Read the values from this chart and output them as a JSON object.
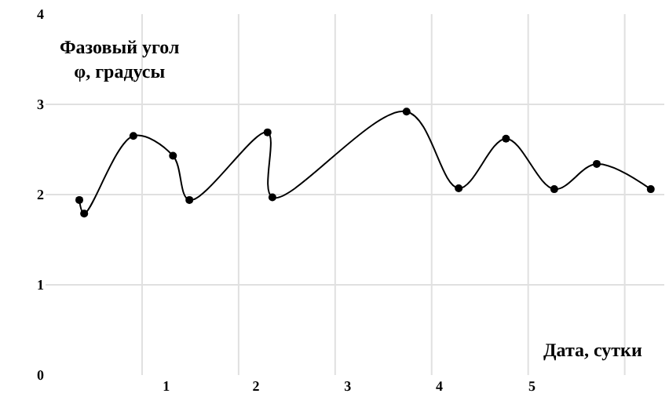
{
  "chart_data": {
    "type": "line",
    "ylabel": "Фазовый угол\nφ, градусы",
    "xlabel": "Дата, сутки",
    "x": [
      0.35,
      0.4,
      0.91,
      1.32,
      1.49,
      2.3,
      2.35,
      3.74,
      4.28,
      4.77,
      5.27,
      5.71,
      6.27
    ],
    "series": [
      {
        "color": "#000000",
        "values": [
          1.94,
          1.79,
          2.65,
          2.43,
          1.94,
          2.69,
          1.97,
          2.92,
          2.07,
          2.62,
          2.06,
          2.34,
          2.06
        ]
      }
    ],
    "xlim": [
      0,
      6.41
    ],
    "xticks": [
      {
        "value": 1,
        "label": null
      },
      {
        "value": 2,
        "label": null
      },
      {
        "value": 3,
        "label": null
      },
      {
        "value": 4,
        "label": null
      },
      {
        "value": 5,
        "label": null
      },
      {
        "value": 6,
        "label": null
      },
      {
        "value": 1.25,
        "label": "1"
      },
      {
        "value": 2.18,
        "label": "2"
      },
      {
        "value": 3.13,
        "label": "3"
      },
      {
        "value": 4.08,
        "label": "4"
      },
      {
        "value": 5.04,
        "label": "5"
      }
    ],
    "ylim": [
      0,
      4
    ],
    "yticks": [
      0,
      1,
      2,
      3,
      4
    ],
    "grid": true,
    "marker": "circle",
    "line_style": "solid"
  }
}
